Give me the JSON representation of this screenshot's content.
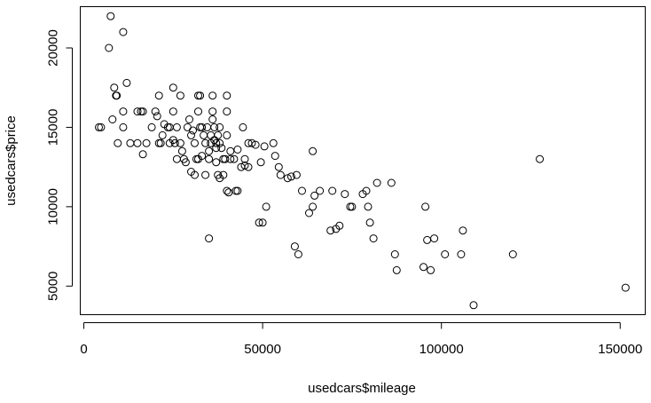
{
  "chart_data": {
    "type": "scatter",
    "title": "",
    "xlabel": "usedcars$mileage",
    "ylabel": "usedcars$price",
    "xlim": [
      -1000,
      157000
    ],
    "ylim": [
      3200,
      22600
    ],
    "xticks": [
      0,
      50000,
      100000,
      150000
    ],
    "xtick_labels": [
      "0",
      "50000",
      "100000",
      "150000"
    ],
    "yticks": [
      5000,
      10000,
      15000,
      20000
    ],
    "ytick_labels": [
      "5000",
      "10000",
      "15000",
      "20000"
    ],
    "grid": false,
    "legend": "none",
    "marker": "open-circle",
    "color": "#000000",
    "points": [
      [
        7500,
        22000
      ],
      [
        7000,
        20000
      ],
      [
        11000,
        21000
      ],
      [
        12000,
        17800
      ],
      [
        8500,
        17500
      ],
      [
        9000,
        17000
      ],
      [
        9200,
        17000
      ],
      [
        4800,
        15000
      ],
      [
        8000,
        15500
      ],
      [
        11000,
        16000
      ],
      [
        15000,
        16000
      ],
      [
        16000,
        16000
      ],
      [
        16500,
        16000
      ],
      [
        20000,
        16000
      ],
      [
        21000,
        17000
      ],
      [
        25000,
        17500
      ],
      [
        27000,
        17000
      ],
      [
        32000,
        17000
      ],
      [
        32500,
        17000
      ],
      [
        36000,
        17000
      ],
      [
        40000,
        17000
      ],
      [
        9500,
        14000
      ],
      [
        11000,
        15000
      ],
      [
        13000,
        14000
      ],
      [
        15000,
        14000
      ],
      [
        16500,
        13300
      ],
      [
        19000,
        15000
      ],
      [
        20500,
        15700
      ],
      [
        21000,
        14000
      ],
      [
        21500,
        14000
      ],
      [
        22000,
        14500
      ],
      [
        22500,
        15200
      ],
      [
        23500,
        15000
      ],
      [
        24000,
        15000
      ],
      [
        24000,
        14000
      ],
      [
        25000,
        16000
      ],
      [
        25000,
        14200
      ],
      [
        25500,
        14000
      ],
      [
        26000,
        15000
      ],
      [
        27000,
        14000
      ],
      [
        27500,
        13500
      ],
      [
        28000,
        13000
      ],
      [
        29000,
        15000
      ],
      [
        29500,
        15500
      ],
      [
        30000,
        14500
      ],
      [
        31000,
        14000
      ],
      [
        31500,
        13000
      ],
      [
        32000,
        13000
      ],
      [
        32000,
        16000
      ],
      [
        32500,
        15000
      ],
      [
        33000,
        15000
      ],
      [
        33500,
        14500
      ],
      [
        34000,
        14000
      ],
      [
        34500,
        15000
      ],
      [
        35000,
        13000
      ],
      [
        35000,
        13500
      ],
      [
        35500,
        14500
      ],
      [
        35500,
        14000
      ],
      [
        36000,
        15500
      ],
      [
        36000,
        16000
      ],
      [
        36500,
        15000
      ],
      [
        36500,
        14200
      ],
      [
        37000,
        14000
      ],
      [
        37000,
        13700
      ],
      [
        37500,
        14500
      ],
      [
        38000,
        15000
      ],
      [
        38000,
        14000
      ],
      [
        38500,
        13700
      ],
      [
        39000,
        13000
      ],
      [
        39000,
        12000
      ],
      [
        39500,
        13000
      ],
      [
        40000,
        14500
      ],
      [
        40000,
        16000
      ],
      [
        40000,
        11000
      ],
      [
        40500,
        10900
      ],
      [
        41000,
        13500
      ],
      [
        42000,
        13000
      ],
      [
        43000,
        13600
      ],
      [
        43000,
        11000
      ],
      [
        44000,
        12500
      ],
      [
        44500,
        15000
      ],
      [
        45000,
        13000
      ],
      [
        45000,
        12600
      ],
      [
        46000,
        12500
      ],
      [
        46000,
        14000
      ],
      [
        47000,
        14000
      ],
      [
        48000,
        13900
      ],
      [
        49000,
        9000
      ],
      [
        49500,
        12800
      ],
      [
        50000,
        9000
      ],
      [
        50500,
        13800
      ],
      [
        51000,
        10000
      ],
      [
        53000,
        14000
      ],
      [
        53500,
        13200
      ],
      [
        54500,
        12500
      ],
      [
        55000,
        12000
      ],
      [
        57000,
        11800
      ],
      [
        58000,
        11900
      ],
      [
        59000,
        7500
      ],
      [
        59500,
        12000
      ],
      [
        60000,
        7000
      ],
      [
        61000,
        11000
      ],
      [
        63000,
        9600
      ],
      [
        64000,
        13500
      ],
      [
        64000,
        10000
      ],
      [
        64500,
        10700
      ],
      [
        66000,
        11000
      ],
      [
        69000,
        8500
      ],
      [
        69500,
        11000
      ],
      [
        70500,
        8600
      ],
      [
        71500,
        8800
      ],
      [
        73000,
        10800
      ],
      [
        74500,
        10000
      ],
      [
        75000,
        10000
      ],
      [
        78000,
        10800
      ],
      [
        79000,
        11000
      ],
      [
        79500,
        10000
      ],
      [
        80000,
        9000
      ],
      [
        81000,
        8000
      ],
      [
        82000,
        11500
      ],
      [
        86000,
        11500
      ],
      [
        87000,
        7000
      ],
      [
        87500,
        6000
      ],
      [
        95000,
        6200
      ],
      [
        95500,
        10000
      ],
      [
        96000,
        7900
      ],
      [
        97000,
        6000
      ],
      [
        98000,
        8000
      ],
      [
        101000,
        7000
      ],
      [
        105500,
        7000
      ],
      [
        106000,
        8500
      ],
      [
        109000,
        3800
      ],
      [
        120000,
        7000
      ],
      [
        127500,
        13000
      ],
      [
        151500,
        4900
      ],
      [
        4200,
        15000
      ],
      [
        17500,
        14000
      ],
      [
        26000,
        13000
      ],
      [
        28500,
        12800
      ],
      [
        30000,
        12200
      ],
      [
        31000,
        12000
      ],
      [
        34000,
        12000
      ],
      [
        35000,
        8000
      ],
      [
        37000,
        12800
      ],
      [
        37500,
        12000
      ],
      [
        38000,
        11800
      ],
      [
        41000,
        13000
      ],
      [
        42500,
        11000
      ],
      [
        30500,
        14800
      ],
      [
        33000,
        13200
      ]
    ]
  }
}
